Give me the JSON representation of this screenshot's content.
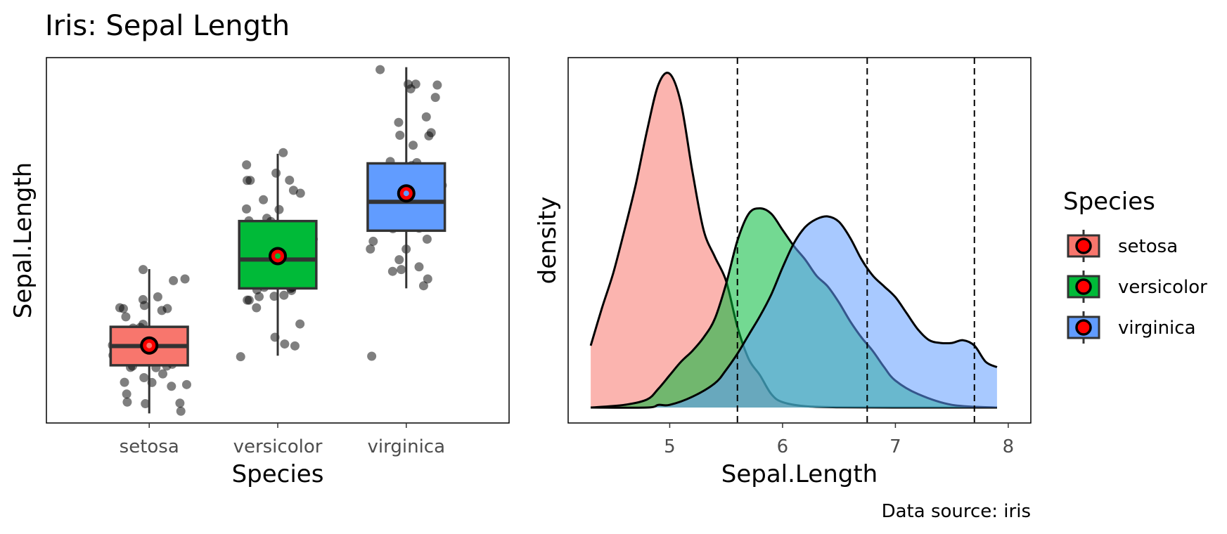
{
  "title": "Iris: Sepal Length",
  "caption": "Data source: iris",
  "colors": {
    "setosa": "#F8766D",
    "versicolor": "#00BA38",
    "virginica": "#619CFF",
    "mean_marker": "#ff0000",
    "points": "#000000"
  },
  "legend": {
    "title": "Species",
    "items": [
      "setosa",
      "versicolor",
      "virginica"
    ]
  },
  "chart_data": [
    {
      "type": "box",
      "xlabel": "Species",
      "ylabel": "Sepal.Length",
      "categories": [
        "setosa",
        "versicolor",
        "virginica"
      ],
      "ylim": [
        4.2,
        8.0
      ],
      "y_ticks_shown": false,
      "boxes": [
        {
          "name": "setosa",
          "min": 4.3,
          "q1": 4.8,
          "median": 5.0,
          "q3": 5.2,
          "max": 5.8,
          "mean": 5.006
        },
        {
          "name": "versicolor",
          "min": 4.9,
          "q1": 5.6,
          "median": 5.9,
          "q3": 6.3,
          "max": 7.0,
          "mean": 5.936
        },
        {
          "name": "virginica",
          "min": 5.6,
          "q1": 6.2,
          "median": 6.5,
          "q3": 6.9,
          "max": 7.9,
          "mean": 6.588
        }
      ],
      "jitter_points": [
        {
          "species": "setosa",
          "values": [
            5.1,
            4.9,
            4.7,
            4.6,
            5.0,
            5.4,
            4.6,
            5.0,
            4.4,
            4.9,
            5.4,
            4.8,
            4.8,
            4.3,
            5.8,
            5.7,
            5.4,
            5.1,
            5.7,
            5.1,
            5.4,
            5.1,
            4.6,
            5.1,
            4.8,
            5.0,
            5.0,
            5.2,
            5.2,
            4.7,
            4.8,
            5.4,
            5.2,
            5.5,
            4.9,
            5.0,
            5.5,
            4.9,
            4.4,
            5.1,
            5.0,
            4.5,
            4.4,
            5.0,
            5.1,
            4.8,
            5.1,
            4.6,
            5.3,
            5.0
          ]
        },
        {
          "species": "versicolor",
          "values": [
            7.0,
            6.4,
            6.9,
            5.5,
            6.5,
            5.7,
            6.3,
            4.9,
            6.6,
            5.2,
            5.0,
            5.9,
            6.0,
            6.1,
            5.6,
            6.7,
            5.6,
            5.8,
            6.2,
            5.6,
            5.9,
            6.1,
            6.3,
            6.1,
            6.4,
            6.6,
            6.8,
            6.7,
            6.0,
            5.7,
            5.5,
            5.5,
            5.8,
            6.0,
            5.4,
            6.0,
            6.7,
            6.3,
            5.6,
            5.5,
            5.5,
            6.1,
            5.8,
            5.0,
            5.6,
            5.7,
            5.7,
            6.2,
            5.1,
            5.7
          ]
        },
        {
          "species": "virginica",
          "values": [
            6.3,
            5.8,
            7.1,
            6.3,
            6.5,
            7.6,
            4.9,
            7.3,
            6.7,
            7.2,
            6.5,
            6.4,
            6.8,
            5.7,
            5.8,
            6.4,
            6.5,
            7.7,
            7.7,
            6.0,
            6.9,
            5.6,
            7.7,
            6.3,
            6.7,
            7.2,
            6.2,
            6.1,
            6.4,
            7.2,
            7.4,
            7.9,
            6.4,
            6.3,
            6.1,
            7.7,
            6.3,
            6.4,
            6.0,
            6.9,
            6.7,
            6.9,
            5.8,
            6.8,
            6.7,
            6.7,
            6.3,
            6.5,
            6.2,
            5.9
          ]
        }
      ]
    },
    {
      "type": "area",
      "xlabel": "Sepal.Length",
      "ylabel": "density",
      "xlim": [
        4.1,
        8.2
      ],
      "ylim": [
        0,
        1.3
      ],
      "x_ticks": [
        "5",
        "6",
        "7",
        "8"
      ],
      "y_ticks_shown": false,
      "vlines": [
        5.6,
        6.75,
        7.7
      ],
      "series": [
        {
          "name": "setosa",
          "x": [
            4.3,
            4.4,
            4.5,
            4.6,
            4.7,
            4.8,
            4.9,
            5.0,
            5.1,
            5.2,
            5.3,
            5.4,
            5.5,
            5.6,
            5.7,
            5.8,
            5.9,
            6.0,
            6.2,
            6.5,
            7.0,
            7.9
          ],
          "y": [
            0.23,
            0.37,
            0.5,
            0.66,
            0.83,
            1.03,
            1.2,
            1.24,
            1.13,
            0.88,
            0.66,
            0.56,
            0.47,
            0.3,
            0.18,
            0.12,
            0.05,
            0.02,
            0.005,
            0.001,
            0.0,
            0.0
          ]
        },
        {
          "name": "versicolor",
          "x": [
            4.3,
            4.6,
            4.8,
            4.9,
            5.0,
            5.1,
            5.2,
            5.3,
            5.4,
            5.5,
            5.6,
            5.7,
            5.8,
            5.9,
            6.0,
            6.1,
            6.2,
            6.3,
            6.4,
            6.5,
            6.6,
            6.7,
            6.8,
            6.9,
            7.0,
            7.2,
            7.5,
            7.9
          ],
          "y": [
            0.0,
            0.01,
            0.03,
            0.07,
            0.12,
            0.17,
            0.21,
            0.26,
            0.33,
            0.46,
            0.62,
            0.72,
            0.74,
            0.72,
            0.66,
            0.6,
            0.55,
            0.49,
            0.45,
            0.39,
            0.32,
            0.26,
            0.21,
            0.15,
            0.1,
            0.05,
            0.01,
            0.0
          ]
        },
        {
          "name": "virginica",
          "x": [
            4.3,
            4.8,
            4.9,
            5.0,
            5.2,
            5.4,
            5.5,
            5.6,
            5.7,
            5.8,
            5.9,
            6.0,
            6.1,
            6.2,
            6.3,
            6.4,
            6.5,
            6.6,
            6.7,
            6.8,
            6.9,
            7.0,
            7.1,
            7.2,
            7.3,
            7.4,
            7.5,
            7.6,
            7.7,
            7.8,
            7.9
          ],
          "y": [
            0.0,
            0.0,
            0.01,
            0.01,
            0.04,
            0.09,
            0.14,
            0.2,
            0.27,
            0.34,
            0.42,
            0.52,
            0.61,
            0.67,
            0.7,
            0.71,
            0.69,
            0.63,
            0.55,
            0.49,
            0.45,
            0.41,
            0.35,
            0.29,
            0.25,
            0.24,
            0.24,
            0.25,
            0.23,
            0.17,
            0.15
          ]
        }
      ]
    }
  ]
}
